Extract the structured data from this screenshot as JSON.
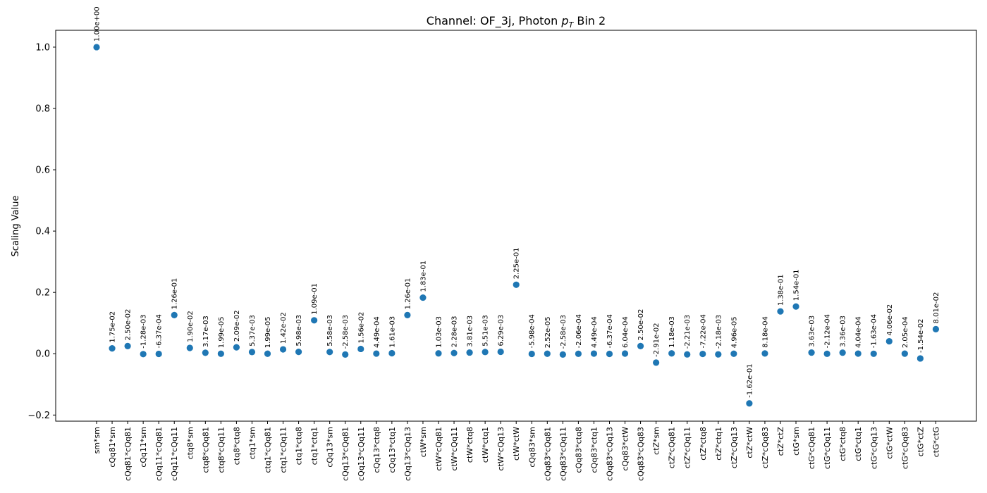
{
  "chart_data": {
    "type": "scatter",
    "title": "Channel: OF_3j, Photon p_T Bin 2",
    "title_parts": {
      "prefix": "Channel: OF_3j, Photon ",
      "var": "p",
      "sub": "T",
      "suffix": " Bin 2"
    },
    "xlabel": "",
    "ylabel": "Scaling Value",
    "ylim": [
      -0.22,
      1.055
    ],
    "yticks": [
      -0.2,
      0.0,
      0.2,
      0.4,
      0.6,
      0.8,
      1.0
    ],
    "ytick_labels": [
      "−0.2",
      "0.0",
      "0.2",
      "0.4",
      "0.6",
      "0.8",
      "1.0"
    ],
    "grid": false,
    "marker_color": "#1f77b4",
    "categories": [
      "sm*sm",
      "cQq81*sm",
      "cQq81*cQq81",
      "cQq11*sm",
      "cQq11*cQq81",
      "cQq11*cQq11",
      "ctq8*sm",
      "ctq8*cQq81",
      "ctq8*cQq11",
      "ctq8*ctq8",
      "ctq1*sm",
      "ctq1*cQq81",
      "ctq1*cQq11",
      "ctq1*ctq8",
      "ctq1*ctq1",
      "cQq13*sm",
      "cQq13*cQq81",
      "cQq13*cQq11",
      "cQq13*ctq8",
      "cQq13*ctq1",
      "cQq13*cQq13",
      "ctW*sm",
      "ctW*cQq81",
      "ctW*cQq11",
      "ctW*ctq8",
      "ctW*ctq1",
      "ctW*cQq13",
      "ctW*ctW",
      "cQq83*sm",
      "cQq83*cQq81",
      "cQq83*cQq11",
      "cQq83*ctq8",
      "cQq83*ctq1",
      "cQq83*cQq13",
      "cQq83*ctW",
      "cQq83*cQq83",
      "ctZ*sm",
      "ctZ*cQq81",
      "ctZ*cQq11",
      "ctZ*ctq8",
      "ctZ*ctq1",
      "ctZ*cQq13",
      "ctZ*ctW",
      "ctZ*cQq83",
      "ctZ*ctZ",
      "ctG*sm",
      "ctG*cQq81",
      "ctG*cQq11",
      "ctG*ctq8",
      "ctG*ctq1",
      "ctG*cQq13",
      "ctG*ctW",
      "ctG*cQq83",
      "ctG*ctZ",
      "ctG*ctG"
    ],
    "values": [
      1.0,
      0.0175,
      0.025,
      -0.00128,
      -0.000637,
      0.126,
      0.019,
      0.00317,
      1.99e-05,
      0.0209,
      0.00537,
      1.99e-05,
      0.0142,
      0.00598,
      0.109,
      0.00558,
      -0.00258,
      0.0156,
      0.000449,
      0.00161,
      0.126,
      0.183,
      0.00103,
      0.00228,
      0.00381,
      0.00551,
      0.00629,
      0.225,
      -0.000598,
      2.52e-05,
      -0.00258,
      -0.000206,
      0.000449,
      -0.000637,
      0.000604,
      0.025,
      -0.0291,
      0.00118,
      -0.00221,
      -0.000722,
      -0.00218,
      4.96e-05,
      -0.162,
      0.000818,
      0.138,
      0.154,
      0.00363,
      -0.000212,
      0.00336,
      0.000404,
      -0.000163,
      0.0406,
      0.000205,
      -0.0154,
      0.0801
    ],
    "value_labels": [
      "1.00e+00",
      "1.75e-02",
      "2.50e-02",
      "-1.28e-03",
      "-6.37e-04",
      "1.26e-01",
      "1.90e-02",
      "3.17e-03",
      "1.99e-05",
      "2.09e-02",
      "5.37e-03",
      "1.99e-05",
      "1.42e-02",
      "5.98e-03",
      "1.09e-01",
      "5.58e-03",
      "-2.58e-03",
      "1.56e-02",
      "4.49e-04",
      "1.61e-03",
      "1.26e-01",
      "1.83e-01",
      "1.03e-03",
      "2.28e-03",
      "3.81e-03",
      "5.51e-03",
      "6.29e-03",
      "2.25e-01",
      "-5.98e-04",
      "2.52e-05",
      "-2.58e-03",
      "-2.06e-04",
      "4.49e-04",
      "-6.37e-04",
      "6.04e-04",
      "2.50e-02",
      "-2.91e-02",
      "1.18e-03",
      "-2.21e-03",
      "-7.22e-04",
      "-2.18e-03",
      "4.96e-05",
      "-1.62e-01",
      "8.18e-04",
      "1.38e-01",
      "1.54e-01",
      "3.63e-03",
      "-2.12e-04",
      "3.36e-03",
      "4.04e-04",
      "-1.63e-04",
      "4.06e-02",
      "2.05e-04",
      "-1.54e-02",
      "8.01e-02"
    ]
  }
}
